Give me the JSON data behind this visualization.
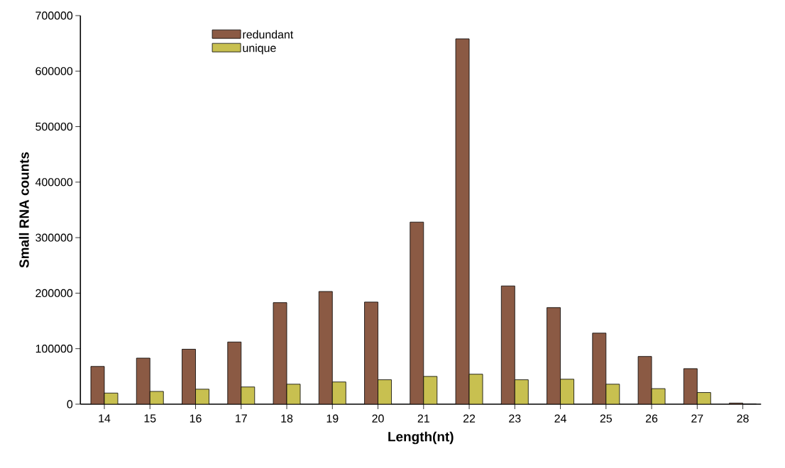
{
  "chart_data": {
    "type": "bar",
    "xlabel": "Length(nt)",
    "ylabel": "Small RNA counts",
    "categories": [
      "14",
      "15",
      "16",
      "17",
      "18",
      "19",
      "20",
      "21",
      "22",
      "23",
      "24",
      "25",
      "26",
      "27",
      "28"
    ],
    "series": [
      {
        "name": "redundant",
        "color": "#8b5a44",
        "values": [
          68000,
          83000,
          99000,
          112000,
          183000,
          203000,
          184000,
          328000,
          658000,
          213000,
          174000,
          128000,
          86000,
          64000,
          2000
        ]
      },
      {
        "name": "unique",
        "color": "#c8c050",
        "values": [
          20000,
          23000,
          27000,
          31000,
          36000,
          40000,
          44000,
          50000,
          54000,
          44000,
          45000,
          36000,
          28000,
          21000,
          0
        ]
      }
    ],
    "ylim": [
      0,
      700000
    ],
    "yticks": [
      0,
      100000,
      200000,
      300000,
      400000,
      500000,
      600000,
      700000
    ],
    "legend": "top left",
    "grid": false
  }
}
